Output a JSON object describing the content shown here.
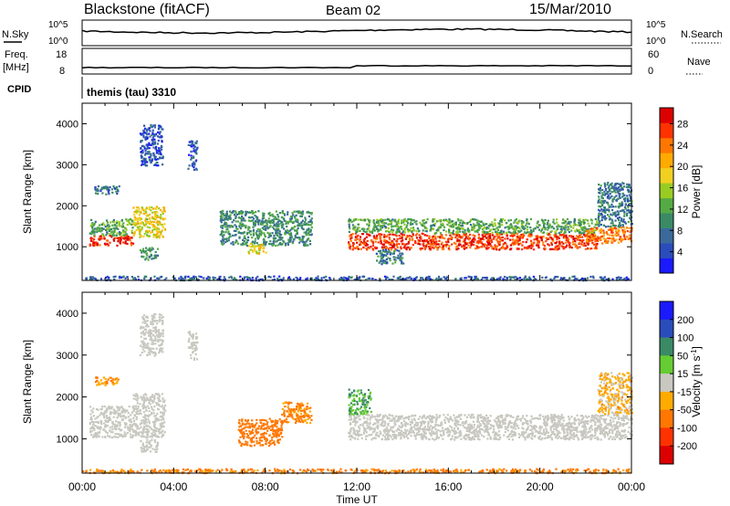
{
  "header": {
    "station": "Blackstone (fitACF)",
    "beam": "Beam 02",
    "date": "15/Mar/2010"
  },
  "strips": {
    "nsky_label": "N.Sky",
    "nsky_ticks": [
      "10^5",
      "10^0"
    ],
    "nsearch_label": "N.Search",
    "freq_label": "Freq.",
    "freq_unit": "[MHz]",
    "freq_ticks": [
      "18",
      "8"
    ],
    "nave_label": "Nave",
    "nave_ticks": [
      "60",
      "0"
    ],
    "cpid_label": "CPID",
    "cpid_value": "themis (tau) 3310"
  },
  "chart_data": [
    {
      "type": "heatmap",
      "panel": "power",
      "ylabel": "Slant Range [km]",
      "xlabel": "Time UT",
      "xlim": [
        0,
        24
      ],
      "ylim": [
        180,
        4500
      ],
      "x_ticks": [
        "00:00",
        "04:00",
        "08:00",
        "12:00",
        "16:00",
        "20:00",
        "00:00"
      ],
      "y_ticks": [
        1000,
        2000,
        3000,
        4000
      ],
      "colorbar": {
        "label": "Power [dB]",
        "ticks": [
          4,
          8,
          12,
          16,
          20,
          24,
          28
        ],
        "range": [
          0,
          31
        ],
        "colors": [
          "#1a1aff",
          "#2a4dbb",
          "#3a6a9a",
          "#3a8a66",
          "#55aa44",
          "#99cc22",
          "#f0d020",
          "#ffaa00",
          "#ff7700",
          "#ff3300",
          "#dd0000"
        ]
      },
      "regions": [
        {
          "t0": 0.3,
          "t1": 2.2,
          "r0": 1050,
          "r1": 1300,
          "level": 28
        },
        {
          "t0": 0.3,
          "t1": 2.2,
          "r0": 1300,
          "r1": 1700,
          "level": 12
        },
        {
          "t0": 2.2,
          "t1": 3.6,
          "r0": 1250,
          "r1": 2000,
          "level": 18
        },
        {
          "t0": 2.5,
          "t1": 3.3,
          "r0": 700,
          "r1": 1000,
          "level": 10
        },
        {
          "t0": 0.5,
          "t1": 1.6,
          "r0": 2300,
          "r1": 2500,
          "level": 6
        },
        {
          "t0": 2.5,
          "t1": 3.5,
          "r0": 3000,
          "r1": 4000,
          "level": 5
        },
        {
          "t0": 4.6,
          "t1": 5.0,
          "r0": 2900,
          "r1": 3600,
          "level": 5
        },
        {
          "t0": 6.0,
          "t1": 10.0,
          "r0": 1050,
          "r1": 1900,
          "level": 10
        },
        {
          "t0": 7.2,
          "t1": 8.0,
          "r0": 850,
          "r1": 1100,
          "level": 18
        },
        {
          "t0": 11.6,
          "t1": 22.5,
          "r0": 950,
          "r1": 1350,
          "level": 27
        },
        {
          "t0": 11.6,
          "t1": 22.5,
          "r0": 1350,
          "r1": 1700,
          "level": 12
        },
        {
          "t0": 22.0,
          "t1": 24.0,
          "r0": 1100,
          "r1": 1500,
          "level": 24
        },
        {
          "t0": 22.5,
          "t1": 24.0,
          "r0": 1500,
          "r1": 2600,
          "level": 8
        },
        {
          "t0": 12.8,
          "t1": 14.0,
          "r0": 600,
          "r1": 950,
          "level": 8
        },
        {
          "t0": 0,
          "t1": 24,
          "r0": 200,
          "r1": 300,
          "level": 6
        }
      ]
    },
    {
      "type": "heatmap",
      "panel": "velocity",
      "ylabel": "Slant Range [km]",
      "xlabel": "Time UT",
      "xlim": [
        0,
        24
      ],
      "ylim": [
        180,
        4500
      ],
      "x_ticks": [
        "00:00",
        "04:00",
        "08:00",
        "12:00",
        "16:00",
        "20:00",
        "00:00"
      ],
      "y_ticks": [
        1000,
        2000,
        3000,
        4000
      ],
      "colorbar": {
        "label": "Velocity [m s",
        "label_sup": "-1",
        "label_end": "]",
        "ticks": [
          "200",
          "100",
          "50",
          "15",
          "-15",
          "-50",
          "-100",
          "-200"
        ],
        "colors": [
          "#1a1aff",
          "#2a4dbb",
          "#3a8a66",
          "#66cc33",
          "#c8c8c0",
          "#ffaa00",
          "#ff7700",
          "#ff3300",
          "#dd0000"
        ]
      },
      "regions": [
        {
          "t0": 0.3,
          "t1": 3.6,
          "r0": 1050,
          "r1": 1800,
          "v": 0
        },
        {
          "t0": 2.2,
          "t1": 3.6,
          "r0": 1800,
          "r1": 2100,
          "v": 0
        },
        {
          "t0": 2.5,
          "t1": 3.3,
          "r0": 700,
          "r1": 1000,
          "v": 0
        },
        {
          "t0": 0.5,
          "t1": 1.6,
          "r0": 2300,
          "r1": 2500,
          "v": -30
        },
        {
          "t0": 2.5,
          "t1": 3.5,
          "r0": 3000,
          "r1": 4000,
          "v": 0
        },
        {
          "t0": 4.6,
          "t1": 5.0,
          "r0": 2900,
          "r1": 3600,
          "v": 0
        },
        {
          "t0": 6.8,
          "t1": 8.7,
          "r0": 850,
          "r1": 1500,
          "v": -50
        },
        {
          "t0": 8.7,
          "t1": 10.0,
          "r0": 1400,
          "r1": 1900,
          "v": -40
        },
        {
          "t0": 11.6,
          "t1": 24.0,
          "r0": 1000,
          "r1": 1600,
          "v": 0
        },
        {
          "t0": 11.6,
          "t1": 12.6,
          "r0": 1600,
          "r1": 2200,
          "v": 30
        },
        {
          "t0": 22.5,
          "t1": 24.0,
          "r0": 1600,
          "r1": 2600,
          "v": -20
        },
        {
          "t0": 0,
          "t1": 24,
          "r0": 200,
          "r1": 300,
          "v": -40
        }
      ]
    }
  ]
}
